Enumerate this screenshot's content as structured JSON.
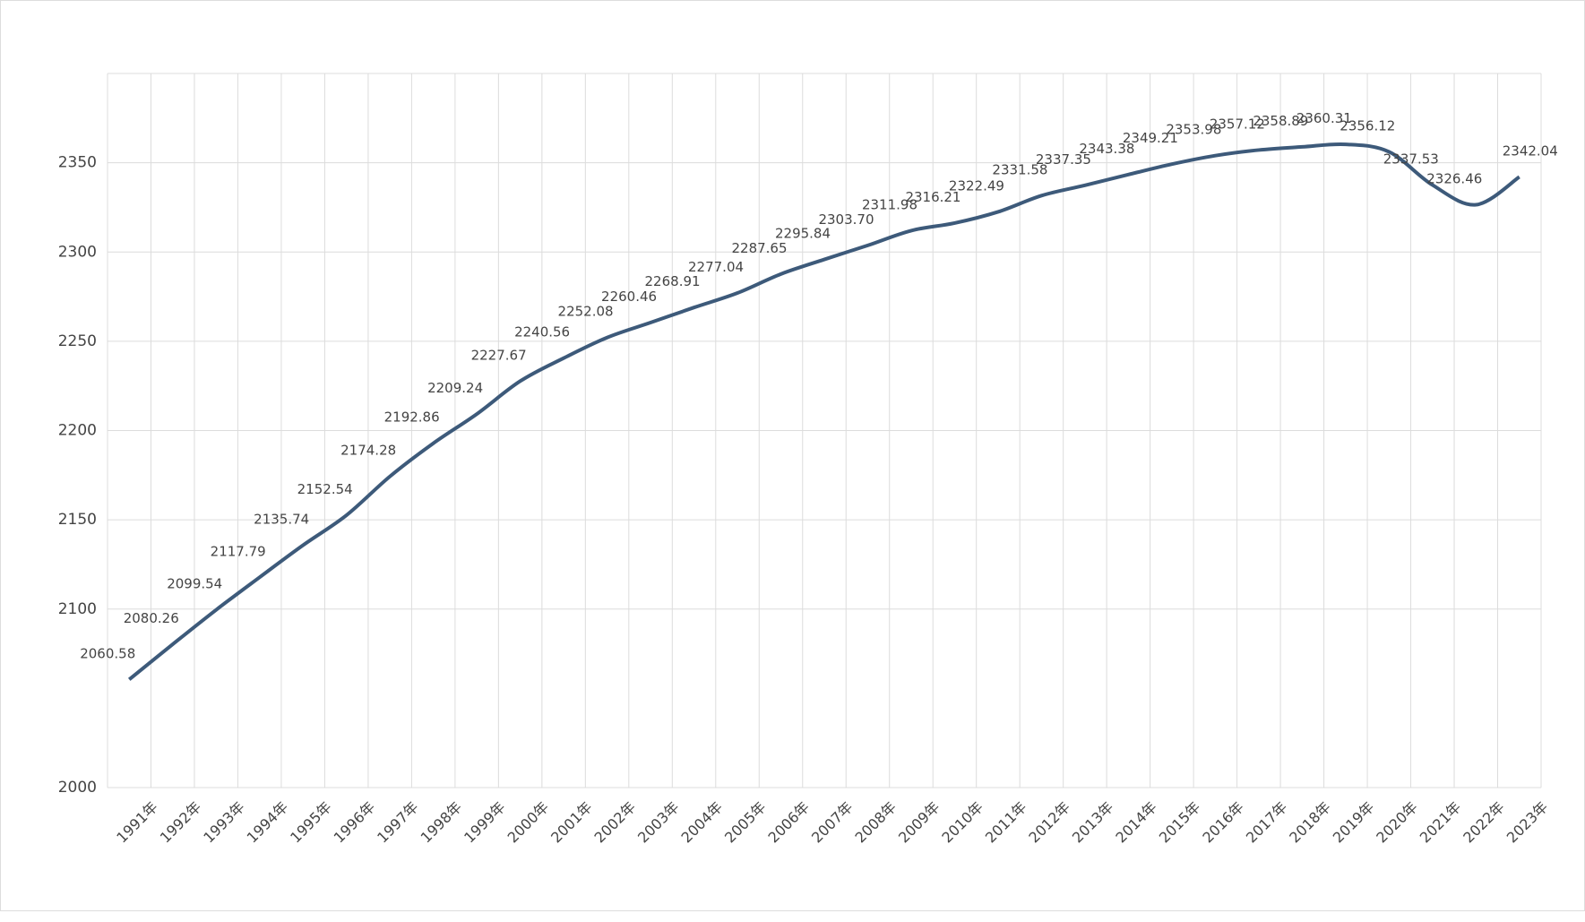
{
  "chart_data": {
    "type": "line",
    "categories": [
      "1991年",
      "1992年",
      "1993年",
      "1994年",
      "1995年",
      "1996年",
      "1997年",
      "1998年",
      "1999年",
      "2000年",
      "2001年",
      "2002年",
      "2003年",
      "2004年",
      "2005年",
      "2006年",
      "2007年",
      "2008年",
      "2009年",
      "2010年",
      "2011年",
      "2012年",
      "2013年",
      "2014年",
      "2015年",
      "2016年",
      "2017年",
      "2018年",
      "2019年",
      "2020年",
      "2021年",
      "2022年",
      "2023年"
    ],
    "values": [
      2060.58,
      2080.26,
      2099.54,
      2117.79,
      2135.74,
      2152.54,
      2174.28,
      2192.86,
      2209.24,
      2227.67,
      2240.56,
      2252.08,
      2260.46,
      2268.91,
      2277.04,
      2287.65,
      2295.84,
      2303.7,
      2311.98,
      2316.21,
      2322.49,
      2331.58,
      2337.35,
      2343.38,
      2349.21,
      2353.98,
      2357.12,
      2358.89,
      2360.31,
      2356.12,
      2337.53,
      2326.46,
      2342.04
    ],
    "value_labels": [
      "2060.58",
      "2080.26",
      "2099.54",
      "2117.79",
      "2135.74",
      "2152.54",
      "2174.28",
      "2192.86",
      "2209.24",
      "2227.67",
      "2240.56",
      "2252.08",
      "2260.46",
      "2268.91",
      "2277.04",
      "2287.65",
      "2295.84",
      "2303.70",
      "2311.98",
      "2316.21",
      "2322.49",
      "2331.58",
      "2337.35",
      "2343.38",
      "2349.21",
      "2353.98",
      "2357.12",
      "2358.89",
      "2360.31",
      "2356.12",
      "2337.53",
      "2326.46",
      "2342.04"
    ],
    "color": "#3d5a7a",
    "ylim": [
      2000,
      2400
    ],
    "yticks": [
      2000,
      2100,
      2150,
      2200,
      2250,
      2300,
      2350
    ],
    "grid": true
  }
}
